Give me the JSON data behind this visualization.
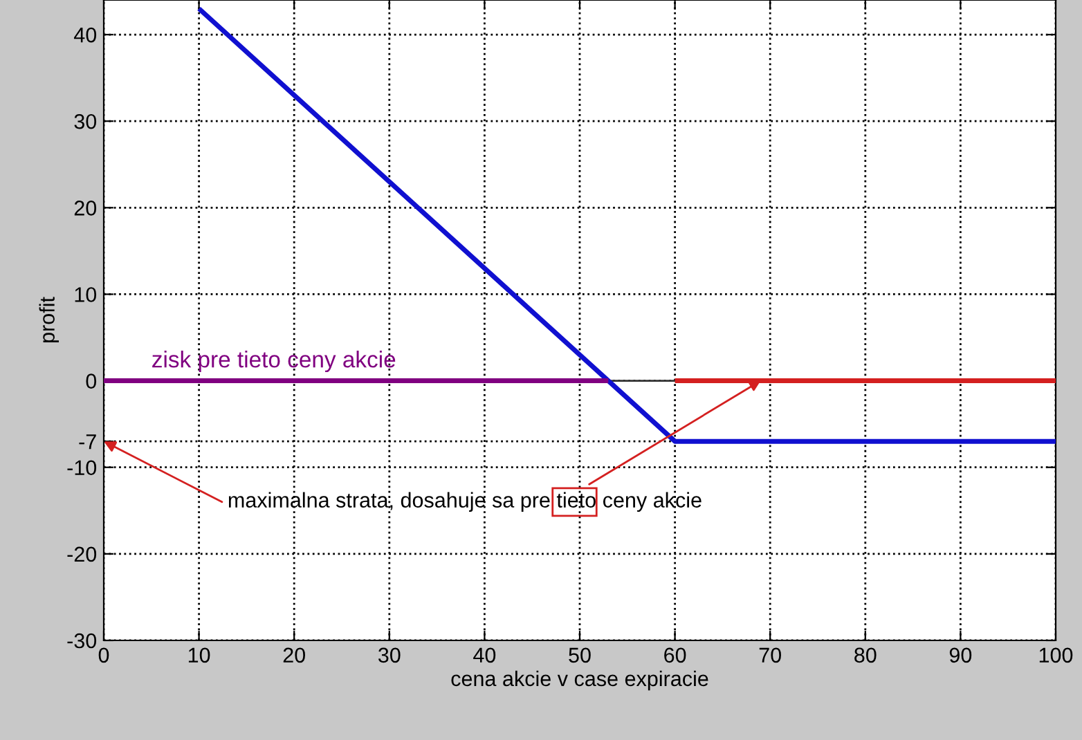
{
  "chart_data": {
    "type": "line",
    "xlabel": "cena akcie v case expiracie",
    "ylabel": "profit",
    "series": [
      {
        "color": "#1010d0",
        "x": [
          10,
          60,
          100
        ],
        "values": [
          43,
          -7,
          -7
        ]
      },
      {
        "name": "zisk pre tieto ceny akcie",
        "color": "#800080",
        "x": [
          0,
          53
        ],
        "values": [
          0,
          0
        ]
      },
      {
        "color": "#333333",
        "x": [
          53,
          60
        ],
        "values": [
          0,
          0
        ]
      },
      {
        "color": "#d42020",
        "x": [
          60,
          100
        ],
        "values": [
          0,
          0
        ]
      }
    ],
    "annotations": [
      {
        "text": "maximalna strata, dosahuje sa pre tieto ceny akcie",
        "x": 69,
        "y": 0
      }
    ],
    "xlim": [
      0,
      100
    ],
    "xticks": [
      0,
      10,
      20,
      30,
      40,
      50,
      60,
      70,
      80,
      90,
      100
    ],
    "ylim": [
      -30,
      44
    ],
    "yticks": [
      -30,
      -20,
      -10,
      -7,
      0,
      10,
      20,
      30,
      40
    ],
    "grid": true,
    "line_style": "solid",
    "marker": "none",
    "legend": false
  }
}
